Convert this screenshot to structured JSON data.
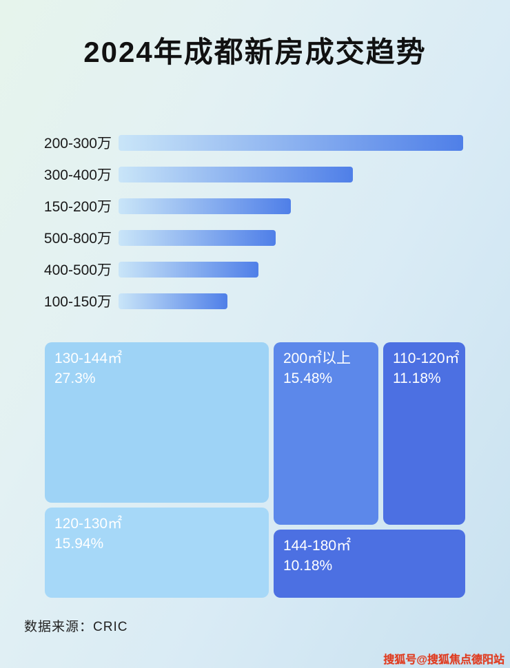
{
  "title": "2024年成都新房成交趋势",
  "chart_data": [
    {
      "type": "bar",
      "orientation": "horizontal",
      "title": "2024年成都新房成交趋势",
      "categories": [
        "200-300万",
        "300-400万",
        "150-200万",
        "500-800万",
        "400-500万",
        "100-150万"
      ],
      "values": [
        100,
        68,
        50,
        45.5,
        40.5,
        31.5
      ],
      "value_unit": "relative-bar-width-percent",
      "xlabel": "",
      "ylabel": "",
      "grid": false,
      "legend": false
    },
    {
      "type": "treemap",
      "items": [
        {
          "label": "130-144㎡",
          "value": 27.3,
          "display": "27.3%",
          "color": "#9ed3f6"
        },
        {
          "label": "200㎡以上",
          "value": 15.48,
          "display": "15.48%",
          "color": "#5c88ea"
        },
        {
          "label": "110-120㎡",
          "value": 11.18,
          "display": "11.18%",
          "color": "#4c70e2"
        },
        {
          "label": "120-130㎡",
          "value": 15.94,
          "display": "15.94%",
          "color": "#a6d8f8"
        },
        {
          "label": "144-180㎡",
          "value": 10.18,
          "display": "10.18%",
          "color": "#4c70e2"
        }
      ]
    }
  ],
  "colors": {
    "bar_gradient_start": "#c9e5f8",
    "bar_gradient_end": "#4f7fe8",
    "background_start": "#e6f4ec",
    "background_end": "#c8e1f0"
  },
  "footer": {
    "source": "数据来源：CRIC"
  },
  "watermark": {
    "text": "搜狐号@搜狐焦点德阳站"
  }
}
